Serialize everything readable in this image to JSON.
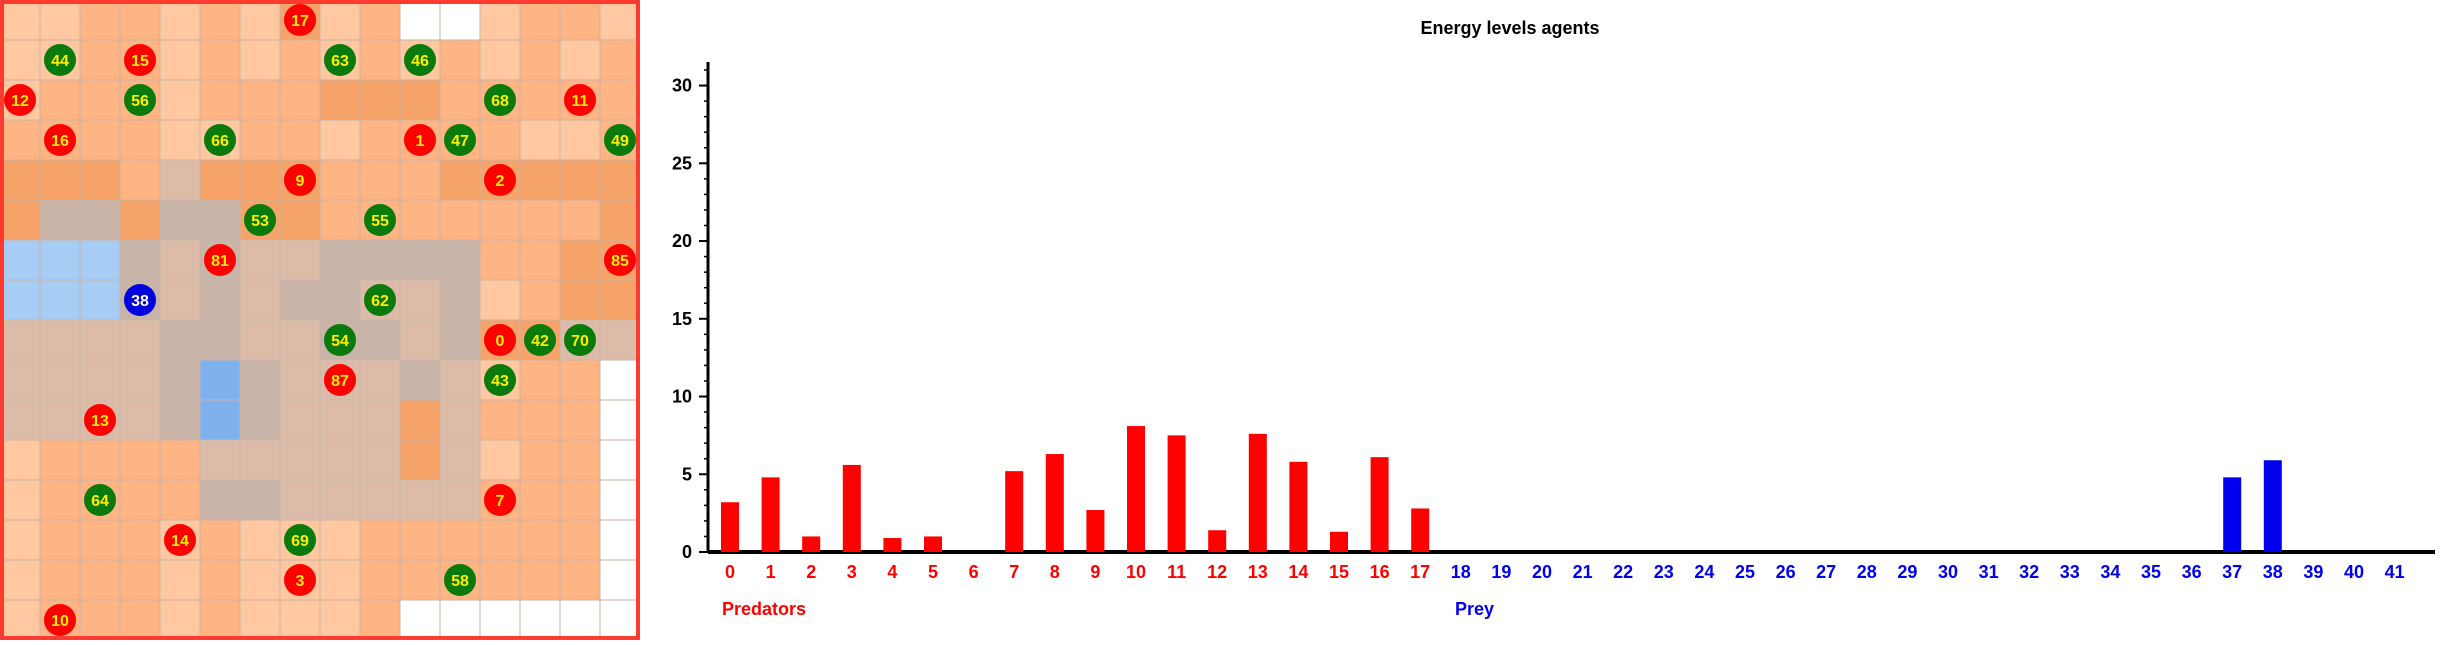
{
  "world": {
    "rows": 16,
    "cols": 16,
    "border_color": "#ff3b30",
    "tile_colors": {
      "w": "#ffffff",
      "s": "#ffc8a0",
      "m": "#ffb484",
      "d": "#f7a46a",
      "g": "#dcbca8",
      "t": "#c8b4a8",
      "b": "#a8cdf5",
      "B": "#7fb1ee"
    },
    "tiles": [
      "ssmmsmsdsmwwsmms",
      "ssmmsmsmsmsmsmsm",
      "smmmsmmmdddmmmmm",
      "mmmmssmmsmmmmssm",
      "dddmgdddmmmddddd",
      "dttdttddmmmmmmmd",
      "bbbtgtggttttmmdd",
      "bbbtgtgttggtsmdd",
      "ggggttggttgtddgg",
      "ggggtBtgggtgsmmw",
      "ggggtBtgggdgmmmw",
      "smmmmgggggdgsmmw",
      "smmmmttgggggmmmw",
      "smmmsmsssmmmmmmw",
      "smmmsmsssmmmmmmw",
      "smmmsmsssmwwwwww"
    ],
    "agents": [
      {
        "id": "17",
        "kind": "predator",
        "row": 0,
        "col": 7
      },
      {
        "id": "44",
        "kind": "prey",
        "row": 1,
        "col": 1
      },
      {
        "id": "15",
        "kind": "predator",
        "row": 1,
        "col": 3
      },
      {
        "id": "63",
        "kind": "prey",
        "row": 1,
        "col": 8
      },
      {
        "id": "46",
        "kind": "prey",
        "row": 1,
        "col": 10
      },
      {
        "id": "12",
        "kind": "predator",
        "row": 2,
        "col": 0
      },
      {
        "id": "56",
        "kind": "prey",
        "row": 2,
        "col": 3
      },
      {
        "id": "68",
        "kind": "prey",
        "row": 2,
        "col": 12
      },
      {
        "id": "11",
        "kind": "predator",
        "row": 2,
        "col": 14
      },
      {
        "id": "16",
        "kind": "predator",
        "row": 3,
        "col": 1
      },
      {
        "id": "66",
        "kind": "prey",
        "row": 3,
        "col": 5
      },
      {
        "id": "1",
        "kind": "predator",
        "row": 3,
        "col": 10
      },
      {
        "id": "47",
        "kind": "prey",
        "row": 3,
        "col": 11
      },
      {
        "id": "49",
        "kind": "prey",
        "row": 3,
        "col": 15
      },
      {
        "id": "9",
        "kind": "predator",
        "row": 4,
        "col": 7
      },
      {
        "id": "2",
        "kind": "predator",
        "row": 4,
        "col": 12
      },
      {
        "id": "53",
        "kind": "prey",
        "row": 5,
        "col": 6
      },
      {
        "id": "55",
        "kind": "prey",
        "row": 5,
        "col": 9
      },
      {
        "id": "81",
        "kind": "predator",
        "row": 6,
        "col": 5
      },
      {
        "id": "85",
        "kind": "predator",
        "row": 6,
        "col": 15
      },
      {
        "id": "38",
        "kind": "blue",
        "row": 7,
        "col": 3
      },
      {
        "id": "62",
        "kind": "prey",
        "row": 7,
        "col": 9
      },
      {
        "id": "54",
        "kind": "prey",
        "row": 8,
        "col": 8
      },
      {
        "id": "0",
        "kind": "predator",
        "row": 8,
        "col": 12
      },
      {
        "id": "42",
        "kind": "prey",
        "row": 8,
        "col": 13
      },
      {
        "id": "70",
        "kind": "prey",
        "row": 8,
        "col": 14
      },
      {
        "id": "87",
        "kind": "predator",
        "row": 9,
        "col": 8
      },
      {
        "id": "43",
        "kind": "prey",
        "row": 9,
        "col": 12
      },
      {
        "id": "13",
        "kind": "predator",
        "row": 10,
        "col": 2
      },
      {
        "id": "64",
        "kind": "prey",
        "row": 12,
        "col": 2
      },
      {
        "id": "7",
        "kind": "predator",
        "row": 12,
        "col": 12
      },
      {
        "id": "14",
        "kind": "predator",
        "row": 13,
        "col": 4
      },
      {
        "id": "69",
        "kind": "prey",
        "row": 13,
        "col": 7
      },
      {
        "id": "3",
        "kind": "predator",
        "row": 14,
        "col": 7
      },
      {
        "id": "58",
        "kind": "prey",
        "row": 14,
        "col": 11
      },
      {
        "id": "10",
        "kind": "predator",
        "row": 15,
        "col": 1
      }
    ],
    "colors": {
      "predator": "#ff0000",
      "prey": "#0a7a0a",
      "blue": "#0000dd",
      "label_yellow": "#ffee00",
      "label_white": "#ffffff"
    }
  },
  "chart_data": {
    "type": "bar",
    "title": "Energy levels agents",
    "ylim": [
      0,
      31
    ],
    "yticks": [
      0,
      5,
      10,
      15,
      20,
      25,
      30
    ],
    "categories": [
      "0",
      "1",
      "2",
      "3",
      "4",
      "5",
      "6",
      "7",
      "8",
      "9",
      "10",
      "11",
      "12",
      "13",
      "14",
      "15",
      "16",
      "17",
      "18",
      "19",
      "20",
      "21",
      "22",
      "23",
      "24",
      "25",
      "26",
      "27",
      "28",
      "29",
      "30",
      "31",
      "32",
      "33",
      "34",
      "35",
      "36",
      "37",
      "38",
      "39",
      "40",
      "41"
    ],
    "values": [
      3.2,
      4.8,
      1.0,
      5.6,
      0.9,
      1.0,
      0,
      5.2,
      6.3,
      2.7,
      8.1,
      7.5,
      1.4,
      7.6,
      5.8,
      1.3,
      6.1,
      2.8,
      0,
      0,
      0,
      0,
      0,
      0,
      0,
      0,
      0,
      0,
      0,
      0,
      0,
      0,
      0,
      0,
      0,
      0,
      0,
      4.8,
      5.9,
      0,
      0,
      0
    ],
    "groups": [
      {
        "name": "Predators",
        "start": 0,
        "end": 17,
        "color": "#ff0000"
      },
      {
        "name": "Prey",
        "start": 18,
        "end": 41,
        "color": "#0000ee"
      }
    ],
    "grid": false
  }
}
